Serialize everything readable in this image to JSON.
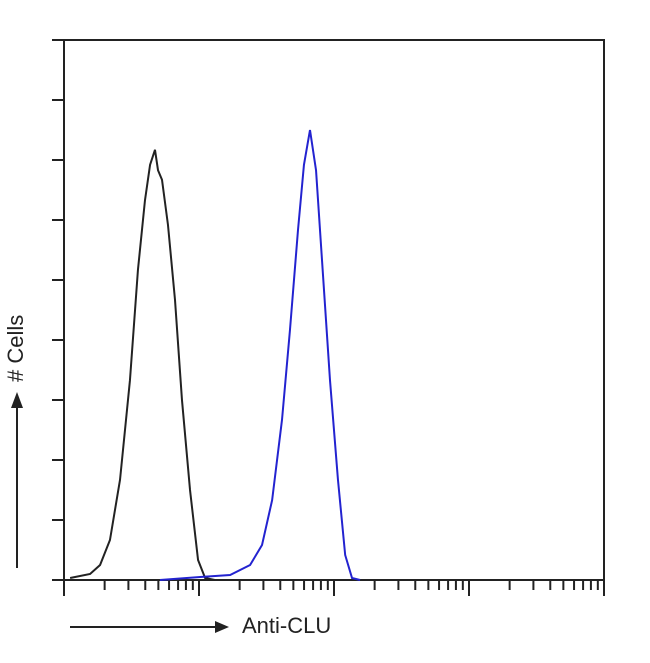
{
  "chart_data": {
    "type": "line",
    "x_label": "Anti-CLU",
    "y_label": "# Cells",
    "log_x": true,
    "xlim": [
      1,
      10000
    ],
    "xticks": [
      1,
      2,
      3,
      4,
      5,
      6,
      7,
      8,
      9,
      10,
      20,
      30,
      40,
      50,
      60,
      70,
      80,
      90,
      100,
      200,
      300,
      400,
      500,
      600,
      700,
      800,
      900,
      1000,
      2000,
      3000,
      4000,
      5000,
      6000,
      7000,
      8000,
      9000,
      10000
    ],
    "ylim": [
      0,
      90
    ],
    "yticks": [
      0,
      10,
      20,
      30,
      40,
      50,
      60,
      70,
      80,
      90
    ],
    "series": [
      {
        "color": "#222222",
        "x": [
          1.11,
          1.56,
          1.85,
          2.19,
          2.6,
          3.08,
          3.53,
          3.98,
          4.34,
          4.72,
          4.97,
          5.32,
          5.89,
          6.64,
          7.48,
          8.58,
          9.84,
          11.1,
          13.1
        ],
        "values": [
          0.33,
          1,
          2.5,
          6.67,
          16.7,
          33.3,
          51.7,
          63.3,
          69.2,
          71.7,
          68.3,
          66.7,
          59.2,
          46.7,
          30,
          15,
          3.33,
          0.33,
          0
        ]
      },
      {
        "color": "#2323d0",
        "x": [
          5.14,
          10.2,
          17,
          23.9,
          29.3,
          34.8,
          41.2,
          47.2,
          54.1,
          59.9,
          66.4,
          73.6,
          81.5,
          93.4,
          107,
          121,
          136,
          156
        ],
        "values": [
          0,
          0.5,
          0.83,
          2.5,
          5.83,
          13.3,
          26.7,
          41.7,
          58.3,
          69.2,
          75,
          68.3,
          53.3,
          33.3,
          16.7,
          4.17,
          0.33,
          0
        ]
      }
    ]
  }
}
